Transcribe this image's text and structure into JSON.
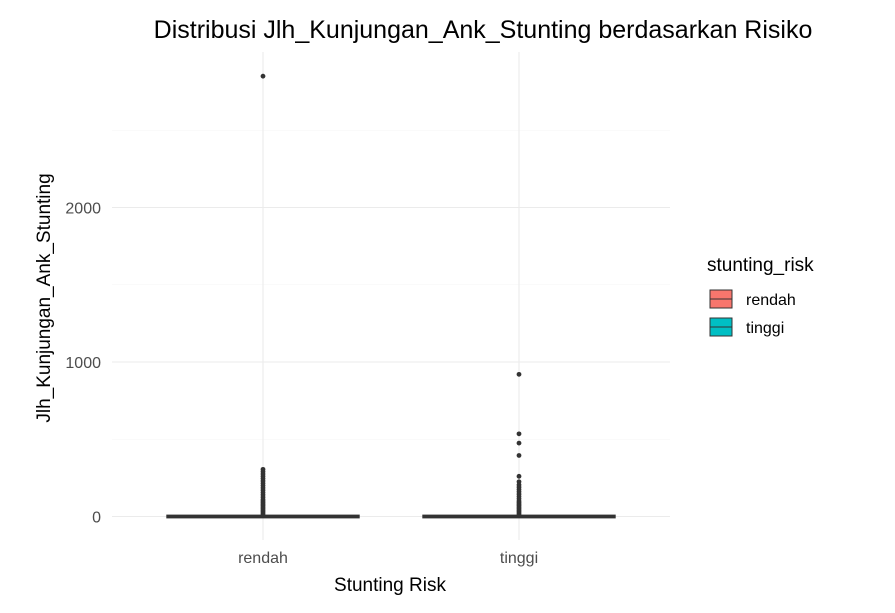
{
  "chart_data": {
    "type": "box",
    "title": "Distribusi Jlh_Kunjungan_Ank_Stunting berdasarkan Risiko",
    "xlabel": "Stunting Risk",
    "ylabel": "Jlh_Kunjungan_Ank_Stunting",
    "categories": [
      "rendah",
      "tinggi"
    ],
    "ylim": [
      -100,
      2980
    ],
    "yticks": [
      0,
      1000,
      2000
    ],
    "grid": true,
    "legend": {
      "title": "stunting_risk",
      "position": "right",
      "entries": [
        {
          "label": "rendah",
          "color": "#F8766D"
        },
        {
          "label": "tinggi",
          "color": "#00BFC4"
        }
      ]
    },
    "series": [
      {
        "name": "rendah",
        "color": "#F8766D",
        "box": {
          "min": 0,
          "q1": 0,
          "median": 0,
          "q3": 0,
          "max": 0
        },
        "outliers": [
          2850,
          305,
          290,
          275,
          260,
          245,
          230,
          215,
          200,
          185,
          170,
          155,
          140,
          125,
          110,
          100,
          90,
          80,
          70,
          60,
          50,
          40,
          30,
          20,
          10
        ]
      },
      {
        "name": "tinggi",
        "color": "#00BFC4",
        "box": {
          "min": 0,
          "q1": 0,
          "median": 0,
          "q3": 0,
          "max": 0
        },
        "outliers": [
          920,
          535,
          475,
          395,
          260,
          225,
          205,
          190,
          175,
          160,
          145,
          130,
          115,
          100,
          90,
          80,
          70,
          60,
          50,
          40,
          30,
          20,
          10
        ]
      }
    ]
  }
}
